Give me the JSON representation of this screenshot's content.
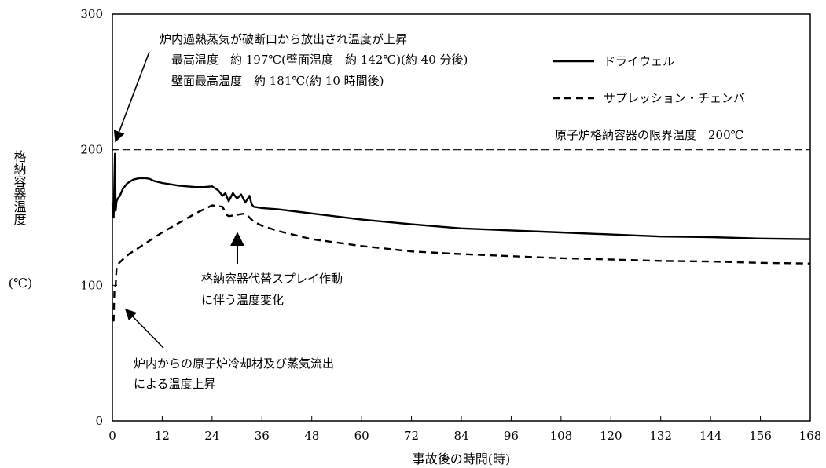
{
  "chart_data": {
    "type": "line",
    "xlabel": "事故後の時間(時)",
    "ylabel": "格納容器温度",
    "yunit": "(℃)",
    "xlim": [
      0,
      168
    ],
    "ylim": [
      0,
      300
    ],
    "xticks": [
      0,
      12,
      24,
      36,
      48,
      60,
      72,
      84,
      96,
      108,
      120,
      132,
      144,
      156,
      168
    ],
    "yticks": [
      0,
      100,
      200,
      300
    ],
    "grid": false,
    "legend_position": "top-right",
    "limit_line": {
      "label": "原子炉格納容器の限界温度　200℃",
      "value": 200
    },
    "series": [
      {
        "name": "ドライウェル",
        "style": "solid",
        "x": [
          0,
          0.3,
          0.6,
          0.8,
          1.0,
          1.3,
          1.8,
          2.5,
          3.5,
          5,
          6.5,
          8,
          9,
          10,
          12,
          14,
          16,
          18,
          20,
          22,
          24,
          25.5,
          26.5,
          27.2,
          28,
          29,
          30,
          31,
          32,
          33,
          33.5,
          34,
          36,
          40,
          48,
          60,
          72,
          84,
          96,
          108,
          120,
          132,
          144,
          156,
          168
        ],
        "values": [
          160,
          150,
          197,
          155,
          162,
          164,
          166,
          171,
          175,
          178,
          179,
          179,
          178.5,
          177,
          175.5,
          174.5,
          173.5,
          173,
          172.5,
          172.5,
          173,
          170,
          166,
          168,
          162,
          168,
          164,
          167,
          161,
          166,
          160,
          158,
          157,
          156,
          153,
          148.5,
          145,
          142,
          140.5,
          139,
          137.5,
          136,
          135.5,
          134.5,
          134
        ]
      },
      {
        "name": "サプレッション・チェンバ",
        "style": "dashed",
        "x": [
          0,
          0.3,
          0.5,
          0.8,
          1.0,
          1.5,
          2.5,
          4,
          6,
          8,
          12,
          16,
          20,
          24,
          26.5,
          27.5,
          28,
          30,
          32,
          33,
          34,
          36,
          40,
          48,
          60,
          72,
          84,
          96,
          108,
          120,
          132,
          144,
          156,
          168
        ],
        "values": [
          74,
          74,
          98,
          100,
          113,
          116,
          119,
          123,
          127,
          131,
          139,
          146,
          153,
          159,
          158,
          152,
          151,
          152,
          153,
          150,
          147,
          144,
          140,
          134,
          129,
          125,
          123,
          121.5,
          120,
          119,
          118,
          117.5,
          116.5,
          116
        ]
      }
    ],
    "annotations": {
      "peak_title": "炉内過熱蒸気が破断口から放出され温度が上昇",
      "peak_line1": "最高温度　約 197℃(壁面温度　約 142℃)(約 40 分後)",
      "peak_line2": "壁面最高温度　約 181℃(約 10 時間後)",
      "spray_line1": "格納容器代替スプレイ作動",
      "spray_line2": "に伴う温度変化",
      "outflow_line1": "炉内からの原子炉冷却材及び蒸気流出",
      "outflow_line2": "による温度上昇"
    }
  }
}
